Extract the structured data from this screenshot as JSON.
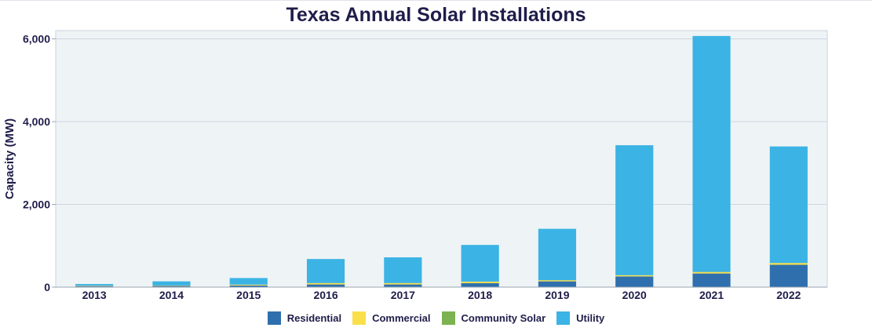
{
  "chart_data": {
    "type": "bar",
    "stacked": true,
    "title": "Texas Annual Solar Installations",
    "xlabel": "",
    "ylabel": "Capacity (MW)",
    "ylim": [
      0,
      6200
    ],
    "yticks": [
      0,
      2000,
      4000,
      6000
    ],
    "ytick_labels": [
      "0",
      "2,000",
      "4,000",
      "6,000"
    ],
    "grid": true,
    "legend_position": "bottom",
    "categories": [
      "2013",
      "2014",
      "2015",
      "2016",
      "2017",
      "2018",
      "2019",
      "2020",
      "2021",
      "2022"
    ],
    "series": [
      {
        "name": "Residential",
        "color": "#2f6fad",
        "values": [
          25,
          30,
          40,
          65,
          65,
          95,
          140,
          260,
          330,
          540
        ]
      },
      {
        "name": "Commercial",
        "color": "#f9e04b",
        "values": [
          10,
          10,
          20,
          30,
          30,
          35,
          25,
          25,
          35,
          40
        ]
      },
      {
        "name": "Community Solar",
        "color": "#7cb24f",
        "values": [
          0,
          0,
          0,
          5,
          5,
          5,
          5,
          5,
          5,
          5
        ]
      },
      {
        "name": "Utility",
        "color": "#3bb3e4",
        "values": [
          40,
          100,
          160,
          580,
          620,
          885,
          1240,
          3140,
          5700,
          2815
        ]
      }
    ]
  }
}
